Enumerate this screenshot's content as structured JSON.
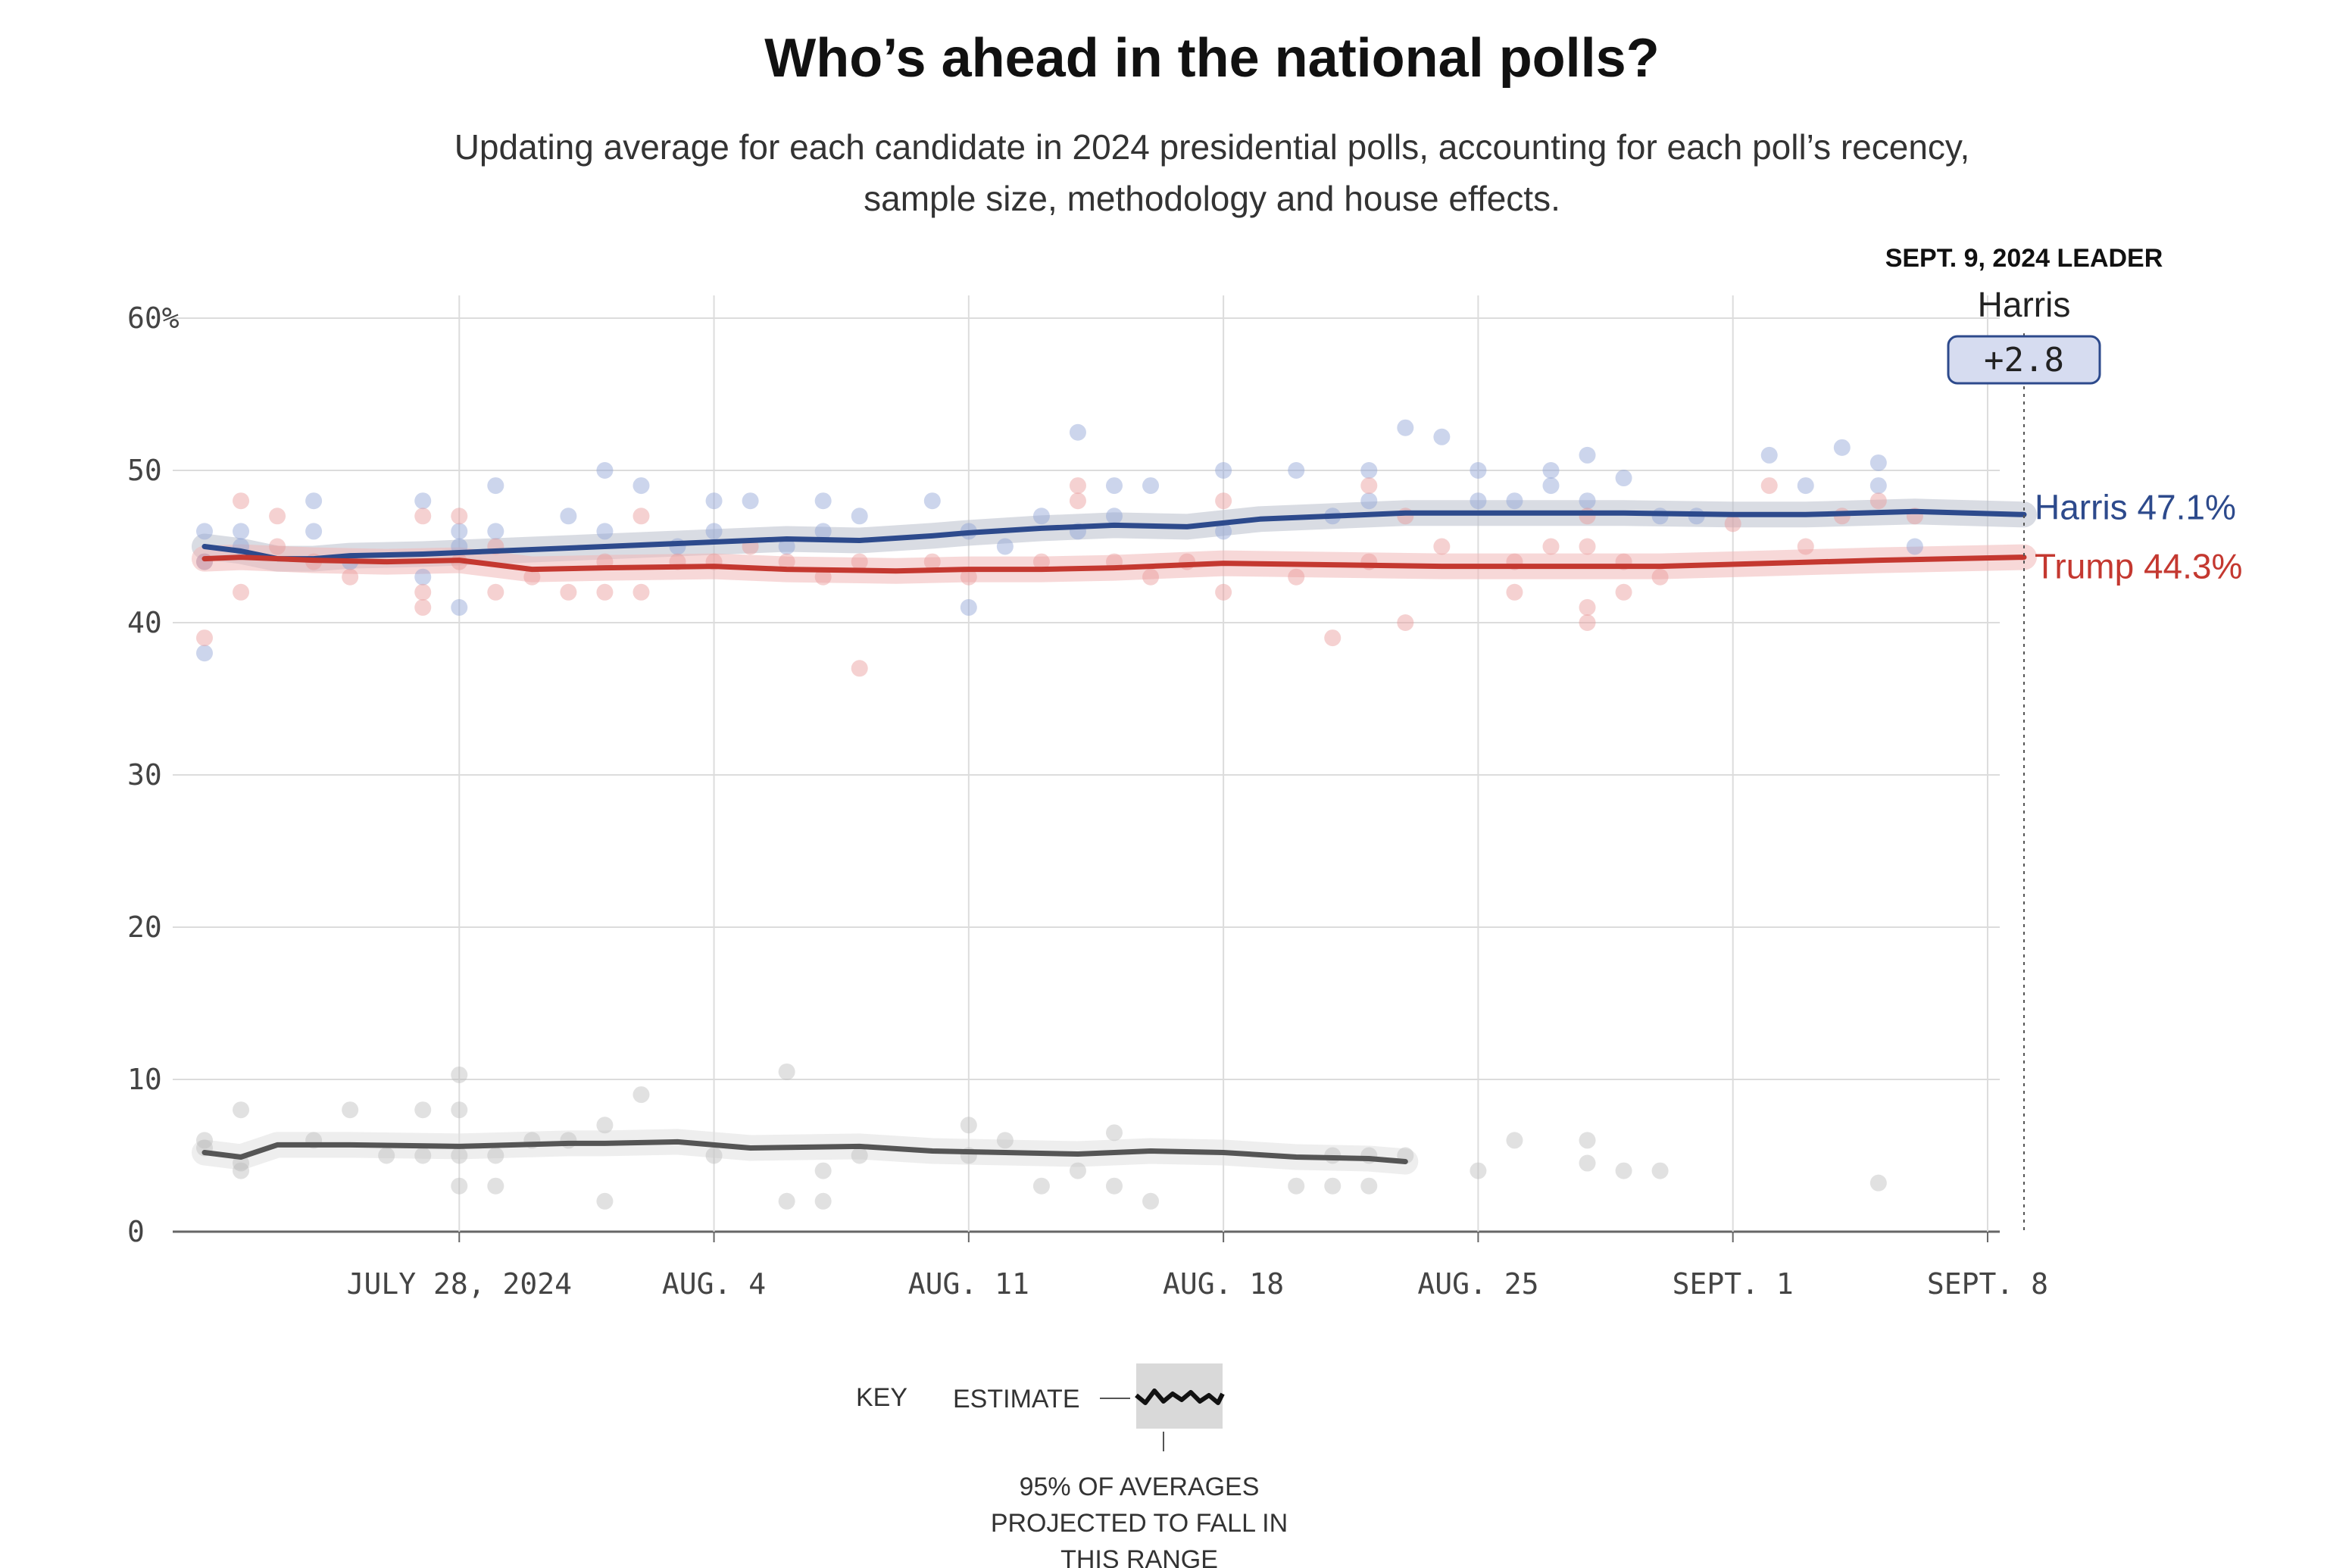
{
  "chart_data": {
    "type": "line",
    "title": "Who’s ahead in the national polls?",
    "subtitle_line1": "Updating average for each candidate in 2024 presidential polls, accounting for each poll’s recency,",
    "subtitle_line2": "sample size, methodology and house effects.",
    "ylim": [
      0,
      60
    ],
    "xlim": [
      "2024-07-21",
      "2024-09-09"
    ],
    "y_ticks": [
      {
        "value": 60,
        "label": "60%"
      },
      {
        "value": 50,
        "label": "50"
      },
      {
        "value": 40,
        "label": "40"
      },
      {
        "value": 30,
        "label": "30"
      },
      {
        "value": 20,
        "label": "20"
      },
      {
        "value": 10,
        "label": "10"
      },
      {
        "value": 0,
        "label": "0"
      }
    ],
    "x_ticks": [
      {
        "date": "2024-07-28",
        "label": "JULY 28, 2024"
      },
      {
        "date": "2024-08-04",
        "label": "AUG. 4"
      },
      {
        "date": "2024-08-11",
        "label": "AUG. 11"
      },
      {
        "date": "2024-08-18",
        "label": "AUG. 18"
      },
      {
        "date": "2024-08-25",
        "label": "AUG. 25"
      },
      {
        "date": "2024-09-01",
        "label": "SEPT. 1"
      },
      {
        "date": "2024-09-08",
        "label": "SEPT. 8"
      }
    ],
    "grid": true,
    "leader": {
      "header": "SEPT. 9, 2024 LEADER",
      "date": "2024-09-09",
      "name": "Harris",
      "margin_label": "+2.8"
    },
    "series": [
      {
        "name": "Harris",
        "end_label": "Harris 47.1%",
        "color": "#2d4a8c",
        "band_color": "#b9bfcc",
        "dot_color": "#8ea2d4",
        "average": [
          [
            "2024-07-21",
            45.0
          ],
          [
            "2024-07-22",
            44.7
          ],
          [
            "2024-07-23",
            44.2
          ],
          [
            "2024-07-24",
            44.2
          ],
          [
            "2024-07-25",
            44.4
          ],
          [
            "2024-07-27",
            44.5
          ],
          [
            "2024-07-30",
            44.8
          ],
          [
            "2024-08-01",
            45.0
          ],
          [
            "2024-08-04",
            45.3
          ],
          [
            "2024-08-06",
            45.5
          ],
          [
            "2024-08-08",
            45.4
          ],
          [
            "2024-08-10",
            45.7
          ],
          [
            "2024-08-11",
            45.9
          ],
          [
            "2024-08-13",
            46.2
          ],
          [
            "2024-08-15",
            46.4
          ],
          [
            "2024-08-17",
            46.3
          ],
          [
            "2024-08-19",
            46.8
          ],
          [
            "2024-08-21",
            47.0
          ],
          [
            "2024-08-23",
            47.2
          ],
          [
            "2024-08-26",
            47.2
          ],
          [
            "2024-08-29",
            47.2
          ],
          [
            "2024-09-01",
            47.1
          ],
          [
            "2024-09-03",
            47.1
          ],
          [
            "2024-09-06",
            47.3
          ],
          [
            "2024-09-09",
            47.1
          ]
        ],
        "polls": [
          [
            "2024-07-21",
            46
          ],
          [
            "2024-07-21",
            44
          ],
          [
            "2024-07-21",
            38
          ],
          [
            "2024-07-22",
            45
          ],
          [
            "2024-07-22",
            46
          ],
          [
            "2024-07-24",
            48
          ],
          [
            "2024-07-24",
            46
          ],
          [
            "2024-07-25",
            44
          ],
          [
            "2024-07-27",
            48
          ],
          [
            "2024-07-27",
            43
          ],
          [
            "2024-07-28",
            46
          ],
          [
            "2024-07-28",
            45
          ],
          [
            "2024-07-28",
            41
          ],
          [
            "2024-07-29",
            49
          ],
          [
            "2024-07-29",
            46
          ],
          [
            "2024-07-31",
            47
          ],
          [
            "2024-08-01",
            50
          ],
          [
            "2024-08-01",
            46
          ],
          [
            "2024-08-02",
            49
          ],
          [
            "2024-08-03",
            45
          ],
          [
            "2024-08-04",
            48
          ],
          [
            "2024-08-04",
            46
          ],
          [
            "2024-08-05",
            48
          ],
          [
            "2024-08-06",
            45
          ],
          [
            "2024-08-07",
            48
          ],
          [
            "2024-08-07",
            46
          ],
          [
            "2024-08-08",
            47
          ],
          [
            "2024-08-10",
            48
          ],
          [
            "2024-08-11",
            46
          ],
          [
            "2024-08-11",
            41
          ],
          [
            "2024-08-12",
            45
          ],
          [
            "2024-08-13",
            47
          ],
          [
            "2024-08-14",
            52.5
          ],
          [
            "2024-08-14",
            46
          ],
          [
            "2024-08-15",
            49
          ],
          [
            "2024-08-15",
            47
          ],
          [
            "2024-08-16",
            49
          ],
          [
            "2024-08-18",
            50
          ],
          [
            "2024-08-18",
            46
          ],
          [
            "2024-08-20",
            50
          ],
          [
            "2024-08-21",
            47
          ],
          [
            "2024-08-22",
            50
          ],
          [
            "2024-08-22",
            48
          ],
          [
            "2024-08-23",
            52.8
          ],
          [
            "2024-08-24",
            52.2
          ],
          [
            "2024-08-25",
            50
          ],
          [
            "2024-08-25",
            48
          ],
          [
            "2024-08-26",
            48
          ],
          [
            "2024-08-27",
            50
          ],
          [
            "2024-08-27",
            49
          ],
          [
            "2024-08-28",
            51
          ],
          [
            "2024-08-28",
            48
          ],
          [
            "2024-08-29",
            49.5
          ],
          [
            "2024-08-30",
            47
          ],
          [
            "2024-08-31",
            47
          ],
          [
            "2024-09-02",
            51
          ],
          [
            "2024-09-03",
            49
          ],
          [
            "2024-09-04",
            51.5
          ],
          [
            "2024-09-05",
            50.5
          ],
          [
            "2024-09-05",
            49
          ],
          [
            "2024-09-06",
            45
          ]
        ]
      },
      {
        "name": "Trump",
        "end_label": "Trump 44.3%",
        "color": "#c43830",
        "band_color": "#f0b8b8",
        "dot_color": "#e99a9a",
        "average": [
          [
            "2024-07-21",
            44.2
          ],
          [
            "2024-07-22",
            44.3
          ],
          [
            "2024-07-24",
            44.1
          ],
          [
            "2024-07-26",
            44.0
          ],
          [
            "2024-07-28",
            44.1
          ],
          [
            "2024-07-30",
            43.5
          ],
          [
            "2024-08-01",
            43.6
          ],
          [
            "2024-08-04",
            43.7
          ],
          [
            "2024-08-06",
            43.5
          ],
          [
            "2024-08-09",
            43.4
          ],
          [
            "2024-08-11",
            43.5
          ],
          [
            "2024-08-13",
            43.5
          ],
          [
            "2024-08-15",
            43.6
          ],
          [
            "2024-08-18",
            43.9
          ],
          [
            "2024-08-21",
            43.8
          ],
          [
            "2024-08-24",
            43.7
          ],
          [
            "2024-08-27",
            43.7
          ],
          [
            "2024-08-30",
            43.7
          ],
          [
            "2024-09-02",
            43.9
          ],
          [
            "2024-09-05",
            44.1
          ],
          [
            "2024-09-09",
            44.3
          ]
        ],
        "polls": [
          [
            "2024-07-21",
            44
          ],
          [
            "2024-07-21",
            39
          ],
          [
            "2024-07-22",
            48
          ],
          [
            "2024-07-22",
            42
          ],
          [
            "2024-07-23",
            47
          ],
          [
            "2024-07-23",
            45
          ],
          [
            "2024-07-24",
            44
          ],
          [
            "2024-07-25",
            43
          ],
          [
            "2024-07-27",
            47
          ],
          [
            "2024-07-27",
            42
          ],
          [
            "2024-07-27",
            41
          ],
          [
            "2024-07-28",
            47
          ],
          [
            "2024-07-28",
            44
          ],
          [
            "2024-07-29",
            45
          ],
          [
            "2024-07-29",
            42
          ],
          [
            "2024-07-30",
            43
          ],
          [
            "2024-07-31",
            42
          ],
          [
            "2024-08-01",
            44
          ],
          [
            "2024-08-01",
            42
          ],
          [
            "2024-08-02",
            47
          ],
          [
            "2024-08-02",
            42
          ],
          [
            "2024-08-03",
            44
          ],
          [
            "2024-08-04",
            44
          ],
          [
            "2024-08-05",
            45
          ],
          [
            "2024-08-06",
            44
          ],
          [
            "2024-08-07",
            43
          ],
          [
            "2024-08-08",
            44
          ],
          [
            "2024-08-08",
            37
          ],
          [
            "2024-08-10",
            44
          ],
          [
            "2024-08-11",
            43
          ],
          [
            "2024-08-13",
            44
          ],
          [
            "2024-08-14",
            49
          ],
          [
            "2024-08-14",
            48
          ],
          [
            "2024-08-15",
            44
          ],
          [
            "2024-08-16",
            43
          ],
          [
            "2024-08-17",
            44
          ],
          [
            "2024-08-18",
            48
          ],
          [
            "2024-08-18",
            42
          ],
          [
            "2024-08-20",
            43
          ],
          [
            "2024-08-21",
            39
          ],
          [
            "2024-08-22",
            49
          ],
          [
            "2024-08-22",
            44
          ],
          [
            "2024-08-23",
            47
          ],
          [
            "2024-08-23",
            40
          ],
          [
            "2024-08-24",
            45
          ],
          [
            "2024-08-26",
            44
          ],
          [
            "2024-08-26",
            42
          ],
          [
            "2024-08-27",
            45
          ],
          [
            "2024-08-28",
            47
          ],
          [
            "2024-08-28",
            45
          ],
          [
            "2024-08-28",
            41
          ],
          [
            "2024-08-28",
            40
          ],
          [
            "2024-08-29",
            44
          ],
          [
            "2024-08-29",
            42
          ],
          [
            "2024-08-30",
            43
          ],
          [
            "2024-09-01",
            46.5
          ],
          [
            "2024-09-02",
            49
          ],
          [
            "2024-09-03",
            45
          ],
          [
            "2024-09-04",
            47
          ],
          [
            "2024-09-05",
            48
          ],
          [
            "2024-09-06",
            47
          ]
        ]
      },
      {
        "name": "",
        "color": "#555555",
        "band_color": "#e0e0e0",
        "dot_color": "#bdbdbd",
        "average": [
          [
            "2024-07-21",
            5.2
          ],
          [
            "2024-07-22",
            4.9
          ],
          [
            "2024-07-23",
            5.7
          ],
          [
            "2024-07-25",
            5.7
          ],
          [
            "2024-07-28",
            5.6
          ],
          [
            "2024-07-31",
            5.8
          ],
          [
            "2024-08-01",
            5.8
          ],
          [
            "2024-08-03",
            5.9
          ],
          [
            "2024-08-05",
            5.5
          ],
          [
            "2024-08-08",
            5.6
          ],
          [
            "2024-08-10",
            5.3
          ],
          [
            "2024-08-12",
            5.2
          ],
          [
            "2024-08-14",
            5.1
          ],
          [
            "2024-08-16",
            5.3
          ],
          [
            "2024-08-18",
            5.2
          ],
          [
            "2024-08-20",
            4.9
          ],
          [
            "2024-08-22",
            4.8
          ],
          [
            "2024-08-23",
            4.6
          ]
        ],
        "polls": [
          [
            "2024-07-21",
            6
          ],
          [
            "2024-07-21",
            5.5
          ],
          [
            "2024-07-22",
            4
          ],
          [
            "2024-07-22",
            4.5
          ],
          [
            "2024-07-22",
            8
          ],
          [
            "2024-07-24",
            6
          ],
          [
            "2024-07-25",
            8
          ],
          [
            "2024-07-26",
            5
          ],
          [
            "2024-07-27",
            8
          ],
          [
            "2024-07-27",
            5
          ],
          [
            "2024-07-28",
            10.3
          ],
          [
            "2024-07-28",
            8
          ],
          [
            "2024-07-28",
            5
          ],
          [
            "2024-07-28",
            3
          ],
          [
            "2024-07-29",
            5
          ],
          [
            "2024-07-29",
            3
          ],
          [
            "2024-07-30",
            6
          ],
          [
            "2024-07-31",
            6
          ],
          [
            "2024-08-01",
            7
          ],
          [
            "2024-08-01",
            2
          ],
          [
            "2024-08-02",
            9
          ],
          [
            "2024-08-04",
            5
          ],
          [
            "2024-08-06",
            10.5
          ],
          [
            "2024-08-06",
            2
          ],
          [
            "2024-08-07",
            4
          ],
          [
            "2024-08-07",
            2
          ],
          [
            "2024-08-08",
            5
          ],
          [
            "2024-08-11",
            7
          ],
          [
            "2024-08-11",
            5
          ],
          [
            "2024-08-12",
            6
          ],
          [
            "2024-08-13",
            3
          ],
          [
            "2024-08-14",
            4
          ],
          [
            "2024-08-15",
            6.5
          ],
          [
            "2024-08-15",
            3
          ],
          [
            "2024-08-16",
            2
          ],
          [
            "2024-08-20",
            3
          ],
          [
            "2024-08-21",
            5
          ],
          [
            "2024-08-21",
            3
          ],
          [
            "2024-08-22",
            5
          ],
          [
            "2024-08-22",
            3
          ],
          [
            "2024-08-23",
            5
          ],
          [
            "2024-08-25",
            4
          ],
          [
            "2024-08-26",
            6
          ],
          [
            "2024-08-28",
            6
          ],
          [
            "2024-08-28",
            4.5
          ],
          [
            "2024-08-29",
            4
          ],
          [
            "2024-08-30",
            4
          ],
          [
            "2024-09-05",
            3.2
          ]
        ]
      }
    ],
    "key": {
      "title": "KEY",
      "estimate_label": "ESTIMATE",
      "range_label_lines": [
        "95% OF AVERAGES",
        "PROJECTED TO FALL IN",
        "THIS RANGE"
      ]
    }
  }
}
